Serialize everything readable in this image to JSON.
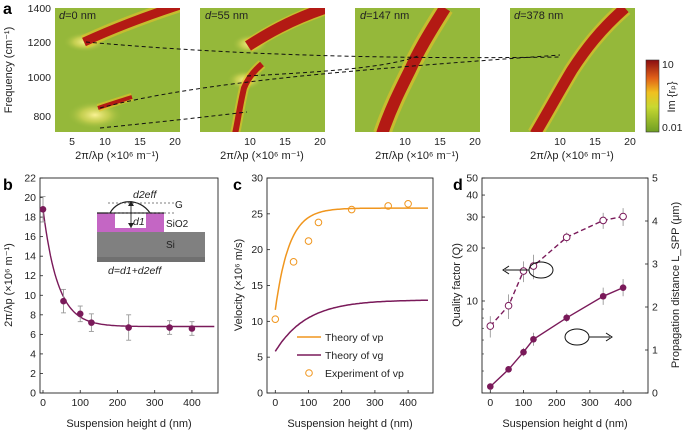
{
  "panel_letters": {
    "a": "a",
    "b": "b",
    "c": "c",
    "d": "d"
  },
  "colors": {
    "purple": "#7a1a5a",
    "orange": "#f0961e",
    "map_bg": "#95b83a",
    "map_hot": "#b31a14"
  },
  "panel_a": {
    "y_label": "Frequency (cm⁻¹)",
    "x_label": "2π/λp (×10⁶ m⁻¹)",
    "y_ticks": [
      "1400",
      "1200",
      "1000",
      "800"
    ],
    "x_ticks_first": [
      "5",
      "10",
      "15",
      "20"
    ],
    "x_ticks_rest": [
      "10",
      "15",
      "20"
    ],
    "subplots": [
      {
        "name": "d=0 nm",
        "var": "d",
        "value": "=0 nm"
      },
      {
        "name": "d=55 nm",
        "var": "d",
        "value": "=55 nm"
      },
      {
        "name": "d=147 nm",
        "var": "d",
        "value": "=147 nm"
      },
      {
        "name": "d=378 nm",
        "var": "d",
        "value": "=378 nm"
      }
    ],
    "colorbar": {
      "max": "10",
      "min": "0.01",
      "label": "Im {rₚ}"
    }
  },
  "chart_data": [
    {
      "id": "b",
      "type": "scatter",
      "xlabel": "Suspension height d (nm)",
      "ylabel": "2π/λp (×10⁶ m⁻¹)",
      "xlim": [
        0,
        470
      ],
      "ylim": [
        0,
        22
      ],
      "x_ticks": [
        0,
        100,
        200,
        300,
        400
      ],
      "y_ticks": [
        0,
        2,
        4,
        6,
        8,
        10,
        12,
        14,
        16,
        18,
        20,
        22
      ],
      "points": [
        {
          "x": 0,
          "y": 18.8,
          "err": 1.3
        },
        {
          "x": 55,
          "y": 9.4,
          "err": 1.2
        },
        {
          "x": 100,
          "y": 8.1,
          "err": 0.8
        },
        {
          "x": 130,
          "y": 7.2,
          "err": 0.9
        },
        {
          "x": 230,
          "y": 6.7,
          "err": 1.3
        },
        {
          "x": 340,
          "y": 6.7,
          "err": 0.7
        },
        {
          "x": 400,
          "y": 6.6,
          "err": 0.7
        }
      ],
      "fit": {
        "form": "6.8 + 12*exp(-x/40)"
      },
      "inset": {
        "deff": "d2eff",
        "d1": "d1",
        "G": "G",
        "SiO2": "SiO2",
        "Si": "Si",
        "formula": "d=d1+d2eff"
      }
    },
    {
      "id": "c",
      "type": "line",
      "xlabel": "Suspension height d (nm)",
      "ylabel": "Velocity (×10⁶ m/s)",
      "xlim": [
        -25,
        475
      ],
      "ylim": [
        0,
        30
      ],
      "x_ticks": [
        0,
        100,
        200,
        300,
        400
      ],
      "y_ticks": [
        0,
        5,
        10,
        15,
        20,
        25,
        30
      ],
      "series": [
        {
          "name": "Theory of vp",
          "form": "25.8 - 14.2*exp(-x/42)",
          "x_range": [
            0,
            460
          ]
        },
        {
          "name": "Theory of vg",
          "form": "13.0 - 7.2*exp(-x/95)",
          "x_range": [
            0,
            460
          ]
        },
        {
          "name": "Experiment of vp",
          "points": [
            [
              0,
              10.3
            ],
            [
              55,
              18.3
            ],
            [
              100,
              21.2
            ],
            [
              130,
              23.8
            ],
            [
              230,
              25.6
            ],
            [
              340,
              26.1
            ],
            [
              400,
              26.4
            ]
          ]
        }
      ],
      "legend": [
        "Theory of vp",
        "Theory of vg",
        "Experiment of vp"
      ]
    },
    {
      "id": "d",
      "type": "scatter",
      "xlabel": "Suspension height d (nm)",
      "ylabel_left": "Quality factor (Q)",
      "ylabel_right": "Propagation distance L_SPP (μm)",
      "xlim": [
        -25,
        475
      ],
      "ylim_left": [
        3,
        50
      ],
      "ylim_right": [
        0,
        5
      ],
      "x_ticks": [
        0,
        100,
        200,
        300,
        400
      ],
      "y_ticks_left": [
        10,
        20,
        30,
        40,
        50
      ],
      "y_ticks_right": [
        0,
        1,
        2,
        3,
        4,
        5
      ],
      "series": [
        {
          "name": "Quality factor",
          "axis": "left",
          "points": [
            {
              "x": 0,
              "y": 7.2,
              "err": 1.0
            },
            {
              "x": 55,
              "y": 9.4,
              "err": 1.5
            },
            {
              "x": 100,
              "y": 14.8,
              "err": 2.0
            },
            {
              "x": 130,
              "y": 15.8,
              "err": 2.5
            },
            {
              "x": 230,
              "y": 23.0,
              "err": 1.5
            },
            {
              "x": 340,
              "y": 28.7,
              "err": 3.0
            },
            {
              "x": 400,
              "y": 30.2,
              "err": 3.5
            }
          ]
        },
        {
          "name": "Propagation distance",
          "axis": "right",
          "points": [
            {
              "x": 0,
              "y": 0.15,
              "err": 0.05
            },
            {
              "x": 55,
              "y": 0.55,
              "err": 0.05
            },
            {
              "x": 100,
              "y": 0.95,
              "err": 0.1
            },
            {
              "x": 130,
              "y": 1.25,
              "err": 0.15
            },
            {
              "x": 230,
              "y": 1.75,
              "err": 0.1
            },
            {
              "x": 340,
              "y": 2.25,
              "err": 0.2
            },
            {
              "x": 400,
              "y": 2.45,
              "err": 0.2
            }
          ]
        }
      ]
    }
  ]
}
